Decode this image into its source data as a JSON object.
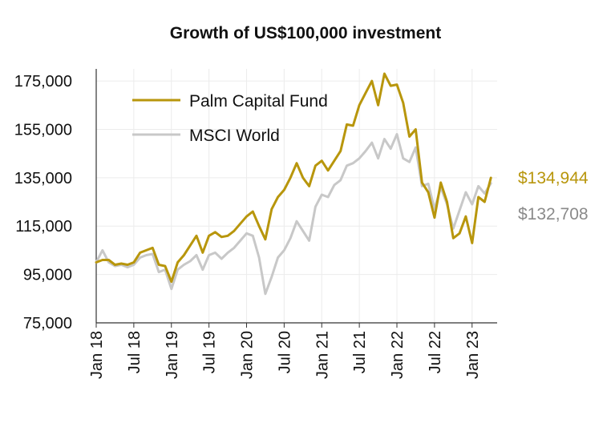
{
  "chart_data": {
    "type": "line",
    "title": "Growth of US$100,000 investment",
    "xlabel": "",
    "ylabel": "",
    "ylim": [
      75000,
      180000
    ],
    "yticks": [
      "175,000",
      "155,000",
      "135,000",
      "115,000",
      "95,000",
      "75,000"
    ],
    "ytick_values": [
      175000,
      155000,
      135000,
      115000,
      95000,
      75000
    ],
    "xtick_labels": [
      "Jan 18",
      "Jul 18",
      "Jan 19",
      "Jul 19",
      "Jan 20",
      "Jul 20",
      "Jan 21",
      "Jul 21",
      "Jan 22",
      "Jul 22",
      "Jan 23"
    ],
    "xtick_positions": [
      0,
      6,
      12,
      18,
      24,
      30,
      36,
      42,
      48,
      54,
      60
    ],
    "x_range": [
      0,
      64
    ],
    "grid": true,
    "legend_position": "top-left",
    "series": [
      {
        "name": "Palm Capital Fund",
        "color": "#b8960c",
        "final_label": "$134,944",
        "values": [
          100000,
          101000,
          101000,
          99000,
          99500,
          99000,
          100000,
          104000,
          105000,
          106000,
          99000,
          98500,
          92000,
          100000,
          103000,
          107000,
          111000,
          104000,
          111000,
          112500,
          110500,
          111000,
          113000,
          116000,
          119000,
          121000,
          115000,
          109500,
          122000,
          127000,
          130000,
          135000,
          141000,
          135000,
          131500,
          140000,
          142000,
          138000,
          142000,
          146000,
          157000,
          156500,
          165000,
          170000,
          175000,
          165000,
          178000,
          173000,
          173500,
          166000,
          152000,
          155000,
          133000,
          129000,
          118500,
          133000,
          125000,
          110000,
          112000,
          119000,
          108000,
          127000,
          125000,
          134944
        ]
      },
      {
        "name": "MSCI World",
        "color": "#c8c8c8",
        "final_label": "$132,708",
        "values": [
          100000,
          105000,
          100000,
          98500,
          99000,
          98000,
          99000,
          102000,
          103000,
          103500,
          96000,
          97000,
          89000,
          97000,
          99000,
          100500,
          103000,
          97000,
          103000,
          104000,
          101500,
          104000,
          106000,
          109000,
          112000,
          111000,
          102000,
          87000,
          94000,
          102000,
          105000,
          110000,
          117000,
          113000,
          109000,
          123000,
          128000,
          127000,
          132000,
          134000,
          140000,
          141000,
          143000,
          146000,
          149500,
          143000,
          151000,
          147000,
          153000,
          143000,
          141500,
          147500,
          131500,
          132500,
          122000,
          131000,
          124000,
          114000,
          121500,
          129000,
          124000,
          131500,
          128500,
          132708
        ]
      }
    ]
  }
}
